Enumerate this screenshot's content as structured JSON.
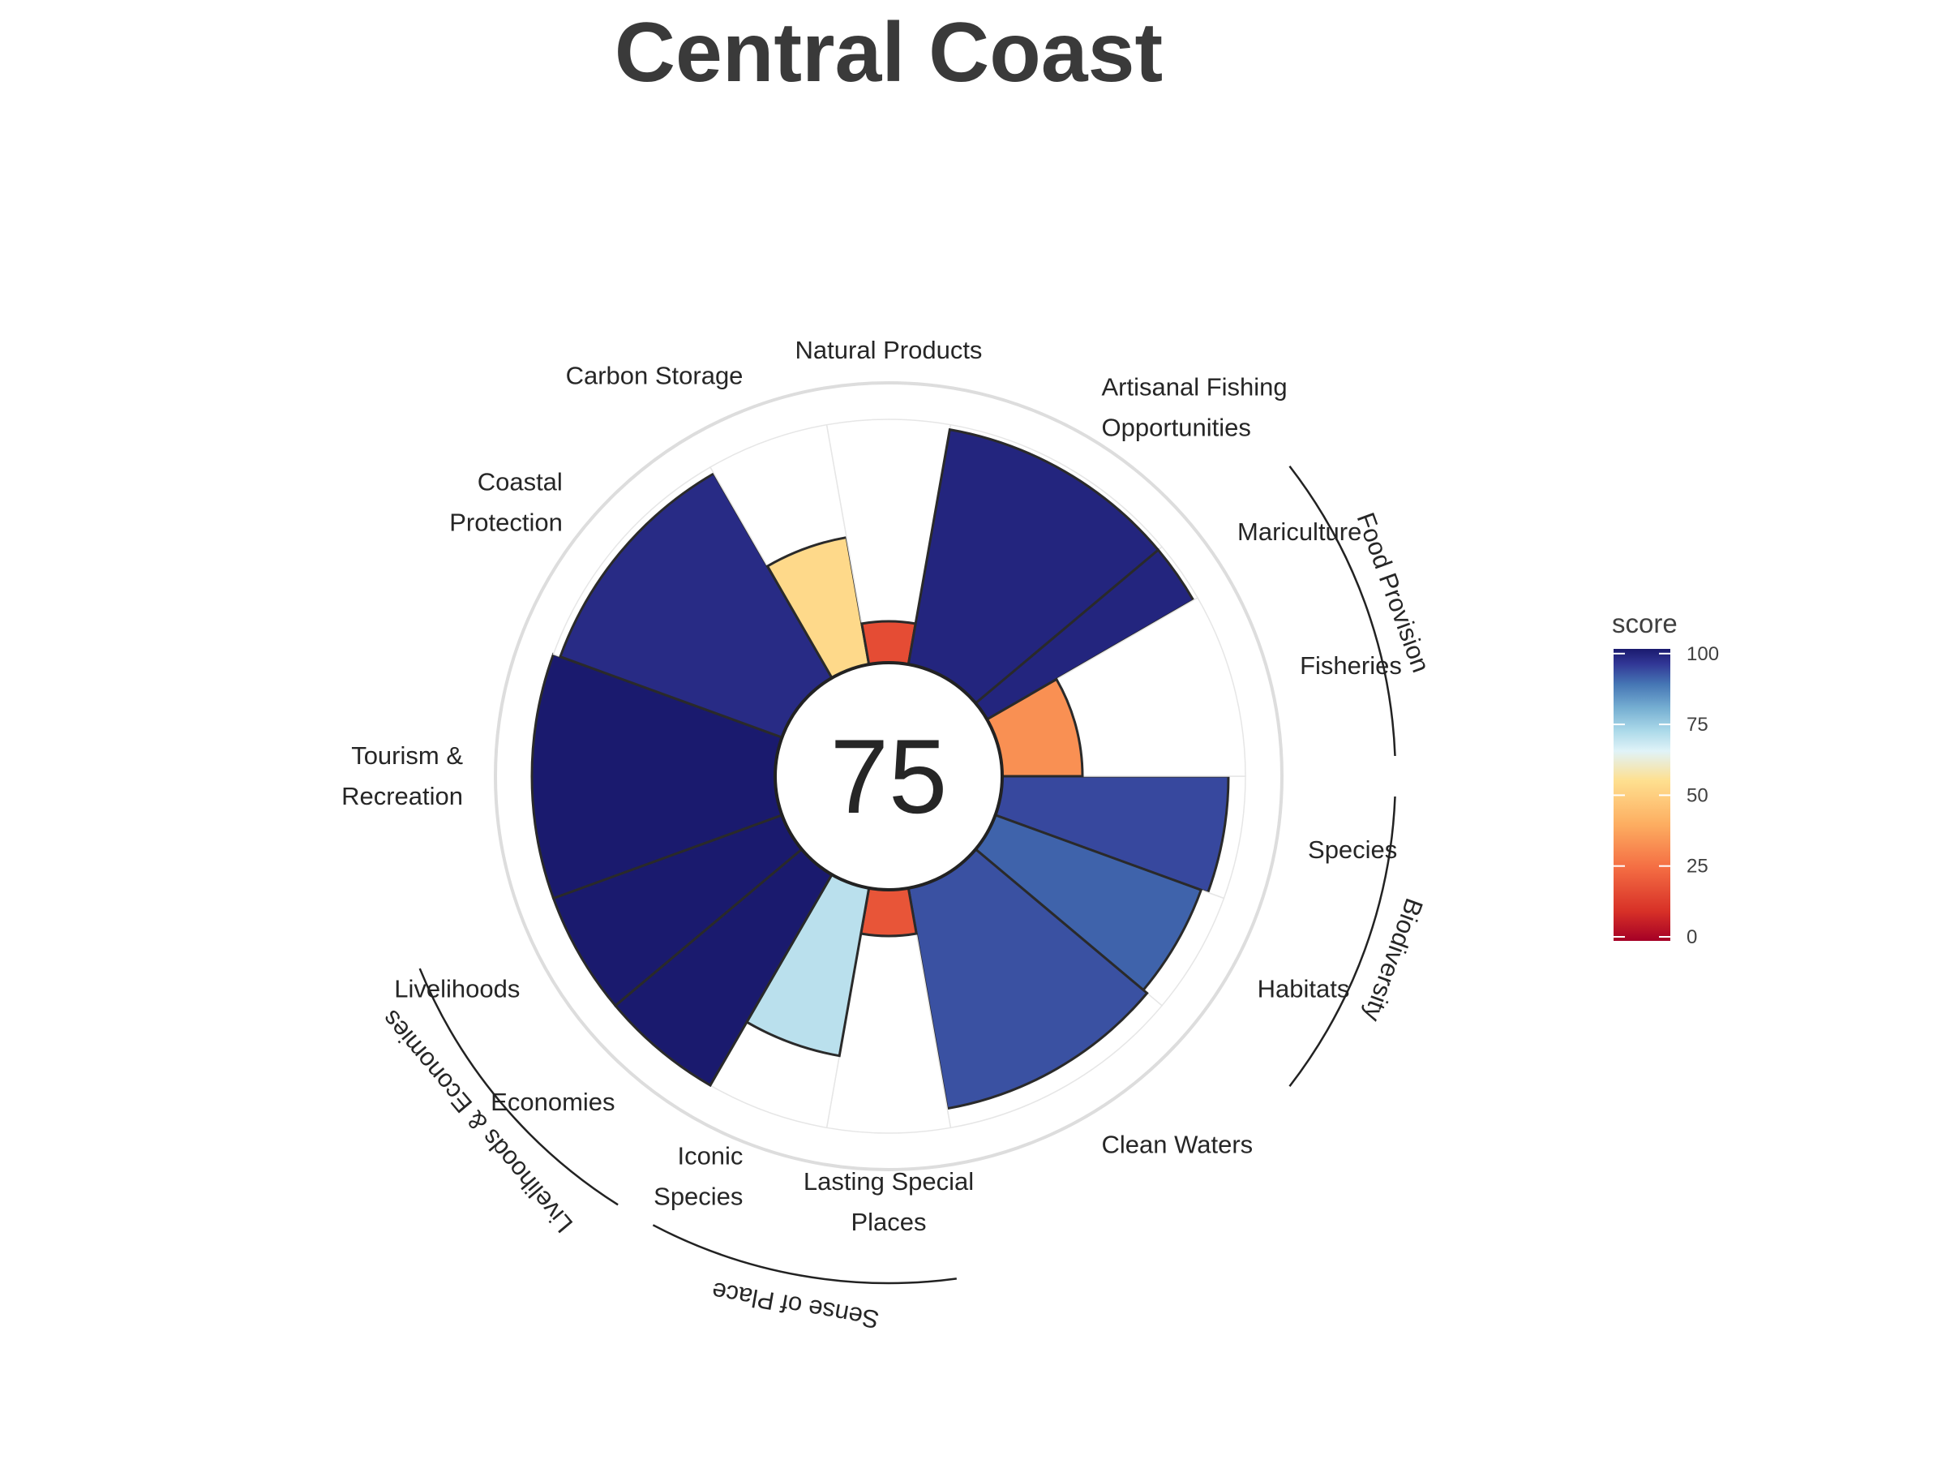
{
  "chart_data": {
    "type": "bar",
    "subtype": "polar-flower",
    "title": "Central Coast",
    "center_label": "75",
    "radial_range": [
      0,
      100
    ],
    "goals": [
      {
        "name": "Species",
        "lines": [
          "Species"
        ],
        "score": 93,
        "weight": 1
      },
      {
        "name": "Habitats",
        "lines": [
          "Habitats"
        ],
        "score": 90,
        "weight": 1
      },
      {
        "name": "Clean Waters",
        "lines": [
          "Clean Waters"
        ],
        "score": 92,
        "weight": 2
      },
      {
        "name": "Lasting Special Places",
        "lines": [
          "Lasting Special",
          "Places"
        ],
        "score": 19,
        "weight": 1
      },
      {
        "name": "Iconic Species",
        "lines": [
          "Iconic",
          "Species"
        ],
        "score": 70,
        "weight": 1
      },
      {
        "name": "Economies",
        "lines": [
          "Economies"
        ],
        "score": 100,
        "weight": 1
      },
      {
        "name": "Livelihoods",
        "lines": [
          "Livelihoods"
        ],
        "score": 100,
        "weight": 1
      },
      {
        "name": "Tourism & Recreation",
        "lines": [
          "Tourism &",
          "Recreation"
        ],
        "score": 100,
        "weight": 2
      },
      {
        "name": "Coastal Protection",
        "lines": [
          "Coastal",
          "Protection"
        ],
        "score": 97,
        "weight": 2
      },
      {
        "name": "Carbon Storage",
        "lines": [
          "Carbon Storage"
        ],
        "score": 53,
        "weight": 1
      },
      {
        "name": "Natural Products",
        "lines": [
          "Natural Products"
        ],
        "score": 17,
        "weight": 1
      },
      {
        "name": "Artisanal Fishing Opportunities",
        "lines": [
          "Artisanal Fishing",
          "Opportunities"
        ],
        "score": 98,
        "weight": 2
      },
      {
        "name": "Mariculture",
        "lines": [
          "Mariculture"
        ],
        "score": 98,
        "weight": 0.5
      },
      {
        "name": "Fisheries",
        "lines": [
          "Fisheries"
        ],
        "score": 33,
        "weight": 1.5
      }
    ],
    "groups": [
      {
        "name": "Food Provision",
        "goals": [
          "Mariculture",
          "Fisheries"
        ]
      },
      {
        "name": "Biodiversity",
        "goals": [
          "Species",
          "Habitats"
        ]
      },
      {
        "name": "Sense of Place",
        "goals": [
          "Lasting Special Places",
          "Iconic Species"
        ]
      },
      {
        "name": "Livelihoods & Economies",
        "goals": [
          "Economies",
          "Livelihoods"
        ]
      }
    ],
    "legend": {
      "title": "score",
      "ticks": [
        0,
        25,
        50,
        75,
        100
      ],
      "placement": "right",
      "colors": [
        "#a50026",
        "#d73027",
        "#f46d43",
        "#fdae61",
        "#fee090",
        "#e0f3f8",
        "#abd9e9",
        "#74add1",
        "#4575b4",
        "#313695",
        "#1a1a6e"
      ]
    },
    "grid": false
  }
}
